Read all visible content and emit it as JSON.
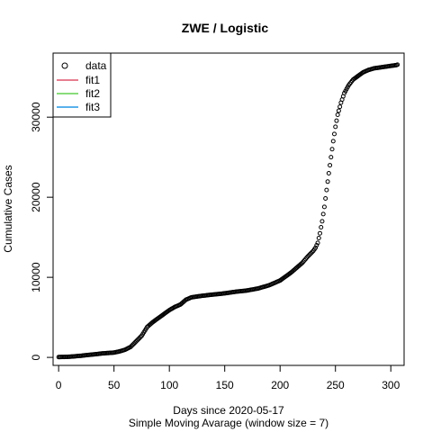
{
  "chart_data": {
    "type": "scatter",
    "title": "ZWE / Logistic",
    "xlabel": "Days since 2020-05-17",
    "xlabel2": "Simple Moving Avarage (window size = 7)",
    "ylabel": "Cumulative Cases",
    "xlim": [
      -5,
      312
    ],
    "ylim": [
      -1000,
      38000
    ],
    "xticks": [
      0,
      50,
      100,
      150,
      200,
      250,
      300
    ],
    "yticks": [
      0,
      10000,
      20000,
      30000
    ],
    "grid": false,
    "legend_position": "top-left",
    "legend": [
      {
        "label": "data",
        "kind": "point",
        "color": "#000000"
      },
      {
        "label": "fit1",
        "kind": "line",
        "color": "#DF536B"
      },
      {
        "label": "fit2",
        "kind": "line",
        "color": "#61D04F"
      },
      {
        "label": "fit3",
        "kind": "line",
        "color": "#2297E6"
      }
    ],
    "series": [
      {
        "name": "data",
        "marker": "open-circle",
        "points": [
          [
            0,
            40
          ],
          [
            10,
            80
          ],
          [
            20,
            200
          ],
          [
            30,
            350
          ],
          [
            40,
            500
          ],
          [
            50,
            600
          ],
          [
            55,
            750
          ],
          [
            60,
            950
          ],
          [
            65,
            1300
          ],
          [
            70,
            2000
          ],
          [
            75,
            2700
          ],
          [
            80,
            3800
          ],
          [
            85,
            4400
          ],
          [
            90,
            4900
          ],
          [
            95,
            5400
          ],
          [
            100,
            5900
          ],
          [
            105,
            6300
          ],
          [
            110,
            6600
          ],
          [
            115,
            7200
          ],
          [
            120,
            7500
          ],
          [
            130,
            7700
          ],
          [
            140,
            7850
          ],
          [
            150,
            8000
          ],
          [
            160,
            8200
          ],
          [
            170,
            8350
          ],
          [
            180,
            8600
          ],
          [
            190,
            9000
          ],
          [
            200,
            9600
          ],
          [
            210,
            10600
          ],
          [
            220,
            11800
          ],
          [
            225,
            12600
          ],
          [
            230,
            13300
          ],
          [
            232,
            13700
          ],
          [
            234,
            14300
          ],
          [
            236,
            15500
          ],
          [
            238,
            17000
          ],
          [
            240,
            18800
          ],
          [
            242,
            20900
          ],
          [
            244,
            23000
          ],
          [
            246,
            25000
          ],
          [
            248,
            27000
          ],
          [
            250,
            28800
          ],
          [
            252,
            30300
          ],
          [
            255,
            31800
          ],
          [
            258,
            33000
          ],
          [
            262,
            34000
          ],
          [
            266,
            34700
          ],
          [
            270,
            35100
          ],
          [
            275,
            35600
          ],
          [
            280,
            35900
          ],
          [
            285,
            36100
          ],
          [
            290,
            36200
          ],
          [
            295,
            36300
          ],
          [
            300,
            36400
          ],
          [
            305,
            36500
          ],
          [
            306,
            36550
          ]
        ]
      }
    ]
  }
}
